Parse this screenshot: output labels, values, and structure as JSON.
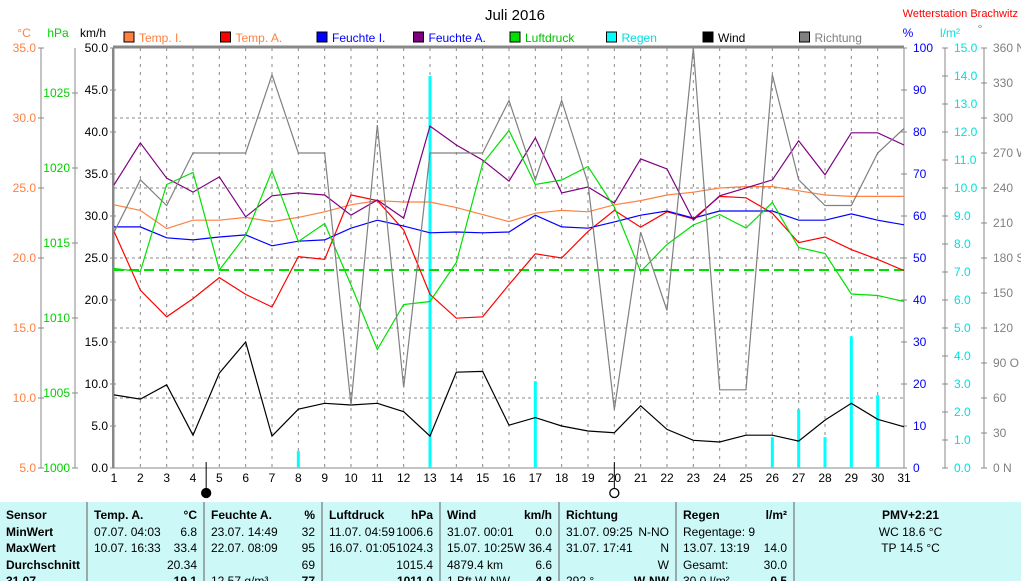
{
  "title": "Juli 2016",
  "station": "Wetterstation Brachwitz",
  "axis_units": {
    "temp": "°C",
    "pressure": "hPa",
    "wind": "km/h",
    "humidity": "%",
    "rain": "l/m²",
    "direction": "°"
  },
  "colors": {
    "temp_i": "#ff8040",
    "temp_a": "#ff0000",
    "feuchte_i": "#0000ff",
    "feuchte_a": "#800080",
    "luftdruck": "#00e000",
    "regen": "#00ffff",
    "wind": "#000000",
    "richtung": "#808080"
  },
  "legend": [
    {
      "key": "temp_i",
      "label": "Temp. I.",
      "text_color": "#ff8040"
    },
    {
      "key": "temp_a",
      "label": "Temp. A.",
      "text_color": "#ff8040"
    },
    {
      "key": "feuchte_i",
      "label": "Feuchte I.",
      "text_color": "#0000ff"
    },
    {
      "key": "feuchte_a",
      "label": "Feuchte A.",
      "text_color": "#0000ff"
    },
    {
      "key": "luftdruck",
      "label": "Luftdruck",
      "text_color": "#00c000"
    },
    {
      "key": "regen",
      "label": "Regen",
      "text_color": "#00e0e0"
    },
    {
      "key": "wind",
      "label": "Wind",
      "text_color": "#000000"
    },
    {
      "key": "richtung",
      "label": "Richtung",
      "text_color": "#808080"
    }
  ],
  "chart_data": {
    "type": "line",
    "title": "Juli 2016",
    "x": [
      1,
      2,
      3,
      4,
      5,
      6,
      7,
      8,
      9,
      10,
      11,
      12,
      13,
      14,
      15,
      16,
      17,
      18,
      19,
      20,
      21,
      22,
      23,
      24,
      25,
      26,
      27,
      28,
      29,
      30,
      31
    ],
    "axes": {
      "temp": {
        "range": [
          5,
          35
        ],
        "ticks": [
          "35.0",
          "30.0",
          "25.0",
          "20.0",
          "15.0",
          "10.0",
          "5.0"
        ]
      },
      "pressure": {
        "range": [
          1000,
          1028
        ],
        "ticks": [
          "1025",
          "1020",
          "1015",
          "1010",
          "1005",
          "1000"
        ]
      },
      "wind": {
        "range": [
          0,
          50
        ],
        "ticks": [
          "50.0",
          "45.0",
          "40.0",
          "35.0",
          "30.0",
          "25.0",
          "20.0",
          "15.0",
          "10.0",
          "5.0",
          "0.0"
        ]
      },
      "humidity": {
        "range": [
          0,
          100
        ],
        "ticks": [
          "100",
          "90",
          "80",
          "70",
          "60",
          "50",
          "40",
          "30",
          "20",
          "10",
          "0"
        ]
      },
      "rain": {
        "range": [
          0,
          15
        ],
        "ticks": [
          "15.0",
          "14.0",
          "13.0",
          "12.0",
          "11.0",
          "10.0",
          "9.0",
          "8.0",
          "7.0",
          "6.0",
          "5.0",
          "4.0",
          "3.0",
          "2.0",
          "1.0",
          "0.0"
        ]
      },
      "direction": {
        "range": [
          0,
          360
        ],
        "ticks": [
          "360 N",
          "330",
          "300",
          "270 W",
          "240",
          "210",
          "180 S",
          "150",
          "120",
          "90 O",
          "60",
          "30",
          "0 N"
        ]
      }
    },
    "series": [
      {
        "key": "temp_i",
        "name": "Temp. I.",
        "axis": "temp",
        "values": [
          23.8,
          23.4,
          22.1,
          22.7,
          22.7,
          22.9,
          22.6,
          22.9,
          23.3,
          23.8,
          24.1,
          24.0,
          24.0,
          23.6,
          23.1,
          22.6,
          23.2,
          23.4,
          23.3,
          23.8,
          24.1,
          24.5,
          24.7,
          25.0,
          25.1,
          25.1,
          24.8,
          24.5,
          24.4,
          24.4,
          24.4
        ]
      },
      {
        "key": "temp_a",
        "name": "Temp. A.",
        "axis": "temp",
        "values": [
          21.9,
          17.7,
          15.8,
          17.1,
          18.6,
          17.4,
          16.5,
          20.1,
          19.9,
          24.5,
          24.1,
          22.0,
          17.4,
          15.7,
          15.8,
          18.1,
          20.3,
          20.0,
          21.9,
          23.4,
          22.2,
          23.3,
          22.8,
          24.4,
          24.3,
          23.2,
          21.1,
          21.5,
          20.6,
          19.9,
          19.1
        ]
      },
      {
        "key": "feuchte_i",
        "name": "Feuchte I.",
        "axis": "humidity",
        "values": [
          57.4,
          57.4,
          54.8,
          54.3,
          55.0,
          55.5,
          52.9,
          54.0,
          54.3,
          57.1,
          59.0,
          57.6,
          56.0,
          56.2,
          56.0,
          56.2,
          60.2,
          57.4,
          57.1,
          58.6,
          60.2,
          61.2,
          59.5,
          61.2,
          61.2,
          61.2,
          59.0,
          59.0,
          60.5,
          59.0,
          57.9
        ]
      },
      {
        "key": "feuchte_a",
        "name": "Feuchte A.",
        "axis": "humidity",
        "values": [
          67.4,
          77.4,
          69.0,
          65.7,
          69.3,
          59.8,
          64.8,
          65.5,
          65.0,
          60.2,
          63.8,
          59.5,
          81.4,
          76.9,
          73.3,
          68.3,
          78.6,
          65.5,
          66.9,
          63.1,
          73.6,
          71.2,
          59.0,
          64.8,
          66.7,
          68.6,
          77.9,
          69.8,
          79.8,
          79.8,
          76.9
        ]
      },
      {
        "key": "luftdruck",
        "name": "Luftdruck",
        "axis": "pressure",
        "values": [
          1013.3,
          1013.1,
          1018.9,
          1019.7,
          1013.2,
          1015.5,
          1019.8,
          1015.1,
          1016.3,
          1012.2,
          1007.9,
          1010.9,
          1011.1,
          1013.7,
          1020.3,
          1022.5,
          1018.9,
          1019.2,
          1020.1,
          1017.4,
          1013.1,
          1014.9,
          1016.2,
          1016.9,
          1016.0,
          1017.7,
          1014.7,
          1014.3,
          1011.6,
          1011.5,
          1011.1
        ]
      },
      {
        "key": "wind",
        "name": "Wind",
        "axis": "wind",
        "values": [
          8.7,
          8.2,
          9.9,
          3.9,
          11.3,
          15.0,
          3.8,
          7.0,
          7.7,
          7.5,
          7.7,
          6.7,
          3.8,
          11.4,
          11.5,
          5.1,
          6.0,
          5.0,
          4.4,
          4.2,
          7.4,
          4.6,
          3.3,
          3.1,
          3.9,
          3.9,
          3.2,
          5.7,
          7.7,
          5.8,
          4.9
        ]
      },
      {
        "key": "richtung",
        "name": "Richtung",
        "axis": "direction",
        "values": [
          202,
          247,
          225,
          270,
          270,
          270,
          337,
          270,
          270,
          54,
          294,
          69,
          270,
          270,
          270,
          315,
          247,
          315,
          244,
          50,
          202,
          135,
          360,
          67,
          67,
          337,
          247,
          225,
          225,
          270,
          291
        ]
      }
    ],
    "rain_bars": {
      "axis": "rain",
      "days": [
        8,
        13,
        17,
        26,
        27,
        28,
        29,
        30
      ],
      "values": [
        0.6,
        14.0,
        3.1,
        1.1,
        2.1,
        1.1,
        4.7,
        2.6
      ]
    },
    "pressure_reference_line": 1013.2,
    "moon_phases": [
      {
        "day": 4.5,
        "phase": "new-moon"
      },
      {
        "day": 20,
        "phase": "full-moon"
      }
    ]
  },
  "table": {
    "sensor": {
      "h": "Sensor",
      "r1": "MinWert",
      "r2": "MaxWert",
      "r3": "Durchschnitt",
      "r4": "31.07"
    },
    "temp": {
      "h": "Temp. A.",
      "u": "°C",
      "min_t": "07.07.  04:03",
      "min": "6.8",
      "max_t": "10.07.  16:33",
      "max": "33.4",
      "avg": "20.34",
      "cur": "19.1"
    },
    "feuchte": {
      "h": "Feuchte A.",
      "u": "%",
      "min_t": "23.07.  14:49",
      "min": "32",
      "max_t": "22.07.  08:09",
      "max": "95",
      "avg": "69",
      "cur_abs": "12.57 g/m³",
      "cur": "77"
    },
    "druck": {
      "h": "Luftdruck",
      "u": "hPa",
      "min_t": "11.07.  04:59",
      "min": "1006.6",
      "max_t": "16.07.  01:05",
      "max": "1024.3",
      "avg": "1015.4",
      "cur": "1011.0"
    },
    "wind": {
      "h": "Wind",
      "u": "km/h",
      "min_t": "31.07.  00:01",
      "min": "0.0",
      "max_t": "15.07.  10:25",
      "max": "W 36.4",
      "avg_t": "4879.4 km",
      "avg": "6.6",
      "cur_t": "1 Bft W-NW",
      "cur": "4.8"
    },
    "richtung": {
      "h": "Richtung",
      "min_t": "31.07.  09:25",
      "min": "N-NO",
      "max_t": "31.07.  17:41",
      "max": "N",
      "avg": "W",
      "cur_t": "292 °",
      "cur": "W-NW"
    },
    "regen": {
      "h": "Regen",
      "u": "l/m²",
      "r1": "Regentage: 9",
      "max_t": "13.07.  13:19",
      "max": "14.0",
      "tot_t": "Gesamt:",
      "tot": "30.0",
      "cur_t": "30.0 l/m²",
      "cur": "0.5"
    },
    "pmv": {
      "h": "PMV+2:21",
      "wc": "WC 18.6 °C",
      "tp": "TP 14.5 °C"
    }
  }
}
